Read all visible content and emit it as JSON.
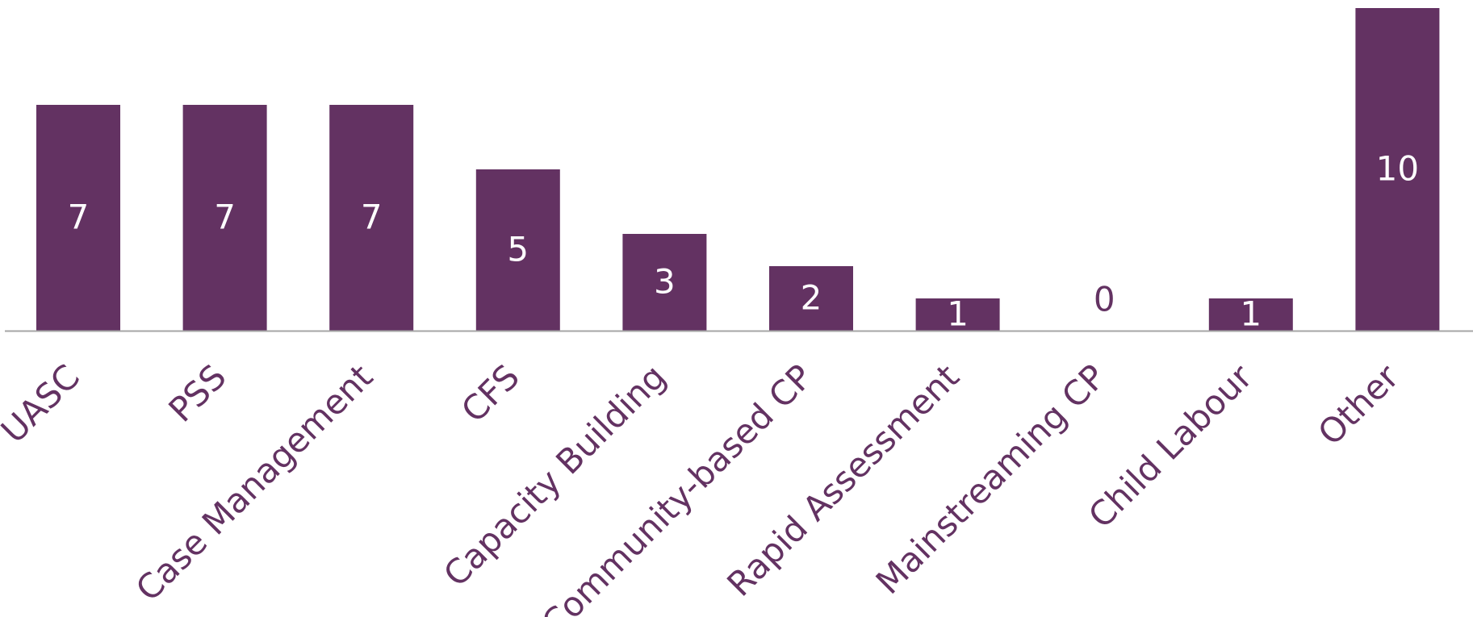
{
  "chart_data": {
    "type": "bar",
    "categories": [
      "UASC",
      "PSS",
      "Case Management",
      "CFS",
      "Capacity Building",
      "Community-based CP",
      "Rapid Assessment",
      "Mainstreaming CP",
      "Child Labour",
      "Other"
    ],
    "values": [
      7,
      7,
      7,
      5,
      3,
      2,
      1,
      0,
      1,
      10
    ],
    "ylim": [
      0,
      10
    ],
    "grid": false,
    "legend": "none",
    "data_labels": true,
    "xlabel_rotation_deg": -45
  },
  "colors": {
    "bar": "#633262",
    "label_inside": "#ffffff",
    "label_outside": "#633262",
    "category_text": "#633262",
    "axis": "#a6a6a6"
  }
}
